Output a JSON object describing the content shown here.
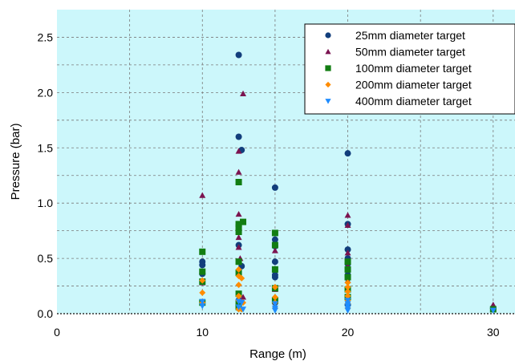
{
  "chart_data": {
    "type": "scatter",
    "title": "",
    "xlabel": "Range (m)",
    "ylabel": "Pressure (bar)",
    "xlim": [
      0,
      31.5
    ],
    "ylim": [
      0,
      2.75
    ],
    "x_ticks": [
      0,
      10,
      20,
      30
    ],
    "x_tick_labels": [
      "0",
      "10",
      "20",
      "30"
    ],
    "y_ticks": [
      0,
      0.5,
      1.0,
      1.5,
      2.0,
      2.5
    ],
    "y_tick_labels": [
      "0.0",
      "0.5",
      "1.0",
      "1.5",
      "2.0",
      "2.5"
    ],
    "grid": true,
    "legend_position": "top-right",
    "background_color": "#ccf7fb",
    "series": [
      {
        "name": "25mm diameter target",
        "marker": "circle",
        "color": "#123e7c",
        "points": [
          [
            10,
            0.47
          ],
          [
            10,
            0.44
          ],
          [
            10,
            0.36
          ],
          [
            12.5,
            2.34
          ],
          [
            12.5,
            1.6
          ],
          [
            12.7,
            1.48
          ],
          [
            12.5,
            0.62
          ],
          [
            12.7,
            0.43
          ],
          [
            12.5,
            0.12
          ],
          [
            12.5,
            0.05
          ],
          [
            15,
            1.14
          ],
          [
            15,
            0.67
          ],
          [
            15,
            0.61
          ],
          [
            15,
            0.47
          ],
          [
            15,
            0.35
          ],
          [
            15,
            0.33
          ],
          [
            15,
            0.1
          ],
          [
            20,
            1.45
          ],
          [
            20,
            0.81
          ],
          [
            20,
            0.58
          ],
          [
            20,
            0.5
          ],
          [
            20,
            0.45
          ],
          [
            20,
            0.35
          ],
          [
            20,
            0.15
          ],
          [
            20,
            0.08
          ],
          [
            30,
            0.05
          ]
        ]
      },
      {
        "name": "50mm diameter target",
        "marker": "triangle-up",
        "color": "#7b1450",
        "points": [
          [
            10,
            1.07
          ],
          [
            10,
            0.28
          ],
          [
            12.5,
            1.47
          ],
          [
            12.8,
            1.99
          ],
          [
            12.5,
            1.28
          ],
          [
            12.5,
            0.9
          ],
          [
            12.5,
            0.69
          ],
          [
            12.5,
            0.6
          ],
          [
            12.6,
            0.5
          ],
          [
            12.8,
            0.15
          ],
          [
            15,
            0.57
          ],
          [
            15,
            0.22
          ],
          [
            20,
            0.89
          ],
          [
            20,
            0.8
          ],
          [
            20,
            0.55
          ],
          [
            20,
            0.43
          ],
          [
            20,
            0.3
          ],
          [
            30,
            0.08
          ]
        ]
      },
      {
        "name": "100mm diameter target",
        "marker": "square",
        "color": "#127d12",
        "points": [
          [
            10,
            0.56
          ],
          [
            10,
            0.38
          ],
          [
            10,
            0.29
          ],
          [
            10,
            0.1
          ],
          [
            12.5,
            1.19
          ],
          [
            12.5,
            0.81
          ],
          [
            12.5,
            0.78
          ],
          [
            12.8,
            0.83
          ],
          [
            12.5,
            0.74
          ],
          [
            12.5,
            0.47
          ],
          [
            12.5,
            0.37
          ],
          [
            12.5,
            0.18
          ],
          [
            12.5,
            0.09
          ],
          [
            12.5,
            0.06
          ],
          [
            15,
            0.73
          ],
          [
            15,
            0.62
          ],
          [
            15,
            0.4
          ],
          [
            15,
            0.23
          ],
          [
            15,
            0.12
          ],
          [
            20,
            0.47
          ],
          [
            20,
            0.4
          ],
          [
            20,
            0.33
          ],
          [
            20,
            0.22
          ],
          [
            20,
            0.15
          ],
          [
            30,
            0.04
          ]
        ]
      },
      {
        "name": "200mm diameter target",
        "marker": "diamond",
        "color": "#ff8c00",
        "points": [
          [
            10,
            0.3
          ],
          [
            10,
            0.19
          ],
          [
            10,
            0.1
          ],
          [
            12.5,
            0.4
          ],
          [
            12.5,
            0.34
          ],
          [
            12.7,
            0.32
          ],
          [
            12.5,
            0.26
          ],
          [
            12.5,
            0.16
          ],
          [
            12.5,
            0.12
          ],
          [
            12.8,
            0.1
          ],
          [
            12.5,
            0.04
          ],
          [
            12.7,
            0.04
          ],
          [
            15,
            0.24
          ],
          [
            15,
            0.15
          ],
          [
            15,
            0.1
          ],
          [
            15,
            0.05
          ],
          [
            20,
            0.28
          ],
          [
            20,
            0.24
          ],
          [
            20,
            0.2
          ],
          [
            20,
            0.16
          ],
          [
            20,
            0.12
          ],
          [
            20,
            0.09
          ],
          [
            20,
            0.05
          ]
        ]
      },
      {
        "name": "400mm diameter target",
        "marker": "triangle-down",
        "color": "#1e8cff",
        "points": [
          [
            10,
            0.11
          ],
          [
            10,
            0.07
          ],
          [
            12.5,
            0.11
          ],
          [
            12.7,
            0.1
          ],
          [
            12.5,
            0.06
          ],
          [
            12.8,
            0.04
          ],
          [
            15,
            0.09
          ],
          [
            15,
            0.05
          ],
          [
            15,
            0.03
          ],
          [
            20,
            0.12
          ],
          [
            20,
            0.09
          ],
          [
            20,
            0.07
          ],
          [
            20,
            0.05
          ],
          [
            20,
            0.03
          ],
          [
            30,
            0.03
          ]
        ]
      }
    ]
  }
}
